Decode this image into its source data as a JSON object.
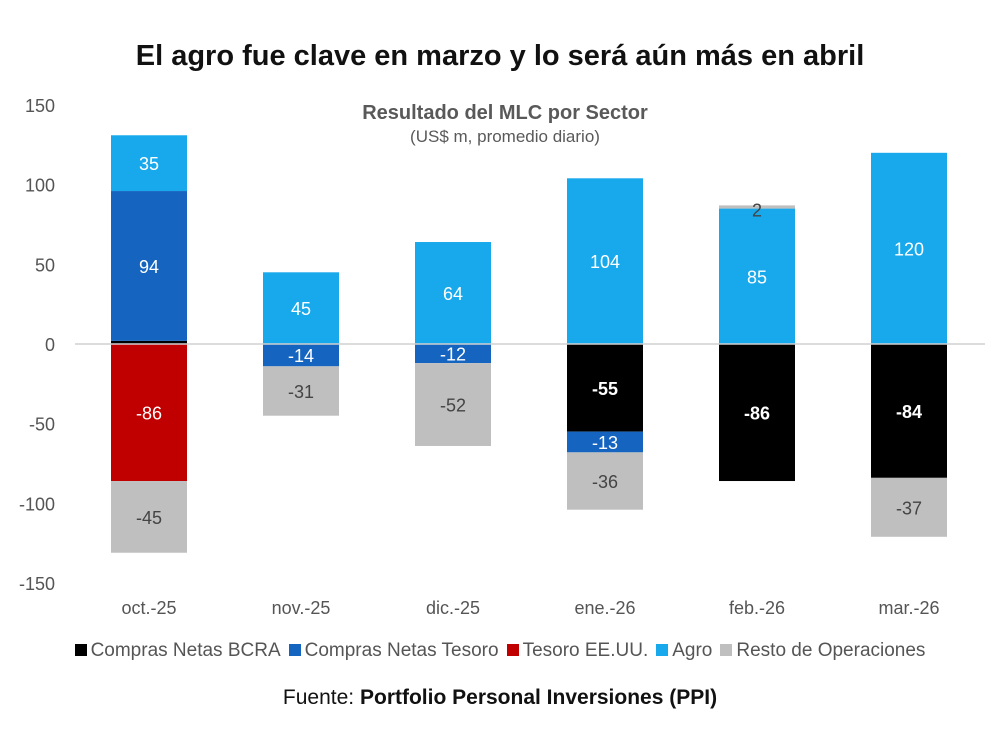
{
  "header": {
    "title": "El agro fue clave en marzo y lo será aún más en abril"
  },
  "footer": {
    "source_prefix": "Fuente: ",
    "source_name": "Portfolio Personal Inversiones (PPI)"
  },
  "chart_data": {
    "type": "bar",
    "stacked": true,
    "title": "Resultado del MLC por Sector",
    "subtitle": "(US$ m, promedio diario)",
    "xlabel": "",
    "ylabel": "",
    "ylim": [
      -150,
      150
    ],
    "yticks": [
      150,
      100,
      50,
      0,
      -50,
      -100,
      -150
    ],
    "grid": false,
    "legend_position": "bottom",
    "categories": [
      "oct.-25",
      "nov.-25",
      "dic.-25",
      "ene.-26",
      "feb.-26",
      "mar.-26"
    ],
    "series": [
      {
        "name": "Compras Netas BCRA",
        "color": "#000000",
        "label_color": "#ffffff",
        "label_bold": true,
        "values": [
          2,
          0,
          0,
          -55,
          -86,
          -84
        ],
        "labels": [
          null,
          null,
          null,
          "-55",
          "-86",
          "-84"
        ]
      },
      {
        "name": "Compras Netas Tesoro",
        "color": "#1565c0",
        "label_color": "#ffffff",
        "label_bold": false,
        "values": [
          94,
          -14,
          -12,
          -13,
          0,
          0
        ],
        "labels": [
          "94",
          "-14",
          "-12",
          "-13",
          null,
          null
        ]
      },
      {
        "name": "Tesoro EE.UU.",
        "color": "#c00000",
        "label_color": "#ffffff",
        "label_bold": false,
        "values": [
          -86,
          0,
          0,
          0,
          0,
          0
        ],
        "labels": [
          "-86",
          null,
          null,
          null,
          null,
          null
        ]
      },
      {
        "name": "Agro",
        "color": "#18a9ec",
        "label_color": "#ffffff",
        "label_bold": false,
        "values": [
          35,
          45,
          64,
          104,
          85,
          120
        ],
        "labels": [
          "35",
          "45",
          "64",
          "104",
          "85",
          "120"
        ]
      },
      {
        "name": "Resto de Operaciones",
        "color": "#bfbfbf",
        "label_color": "#444444",
        "label_bold": false,
        "values": [
          -45,
          -31,
          -52,
          -36,
          2,
          -37
        ],
        "labels": [
          "-45",
          "-31",
          "-52",
          "-36",
          "2",
          "-37"
        ]
      }
    ]
  }
}
